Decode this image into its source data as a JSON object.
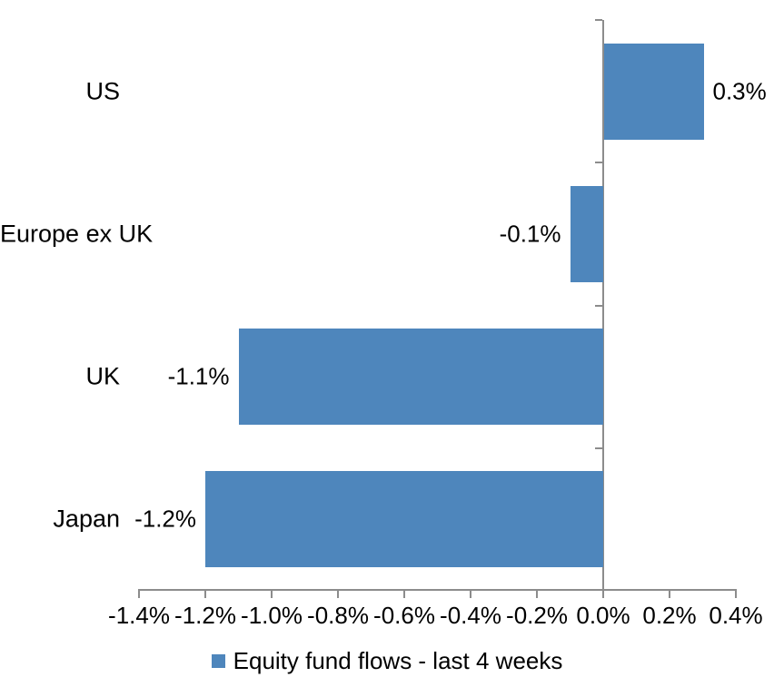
{
  "chart_data": {
    "type": "bar",
    "orientation": "horizontal",
    "title": "",
    "categories": [
      "US",
      "Europe ex UK",
      "UK",
      "Japan"
    ],
    "series": [
      {
        "name": "Equity fund flows - last 4 weeks",
        "values": [
          0.3,
          -0.1,
          -1.1,
          -1.2
        ],
        "data_labels": [
          "0.3%",
          "-0.1%",
          "-1.1%",
          "-1.2%"
        ],
        "color": "#4E86BC"
      }
    ],
    "xlabel": "",
    "ylabel": "",
    "xlim": [
      -1.4,
      0.4
    ],
    "x_ticks": [
      -1.4,
      -1.2,
      -1.0,
      -0.8,
      -0.6,
      -0.4,
      -0.2,
      0.0,
      0.2,
      0.4
    ],
    "x_tick_labels": [
      "-1.4%",
      "-1.2%",
      "-1.0%",
      "-0.8%",
      "-0.6%",
      "-0.4%",
      "-0.2%",
      "0.0%",
      "0.2%",
      "0.4%"
    ],
    "grid": false,
    "legend_position": "bottom",
    "axis_color": "#8C8C8C",
    "text_color": "#000000",
    "background": "#FFFFFF"
  }
}
